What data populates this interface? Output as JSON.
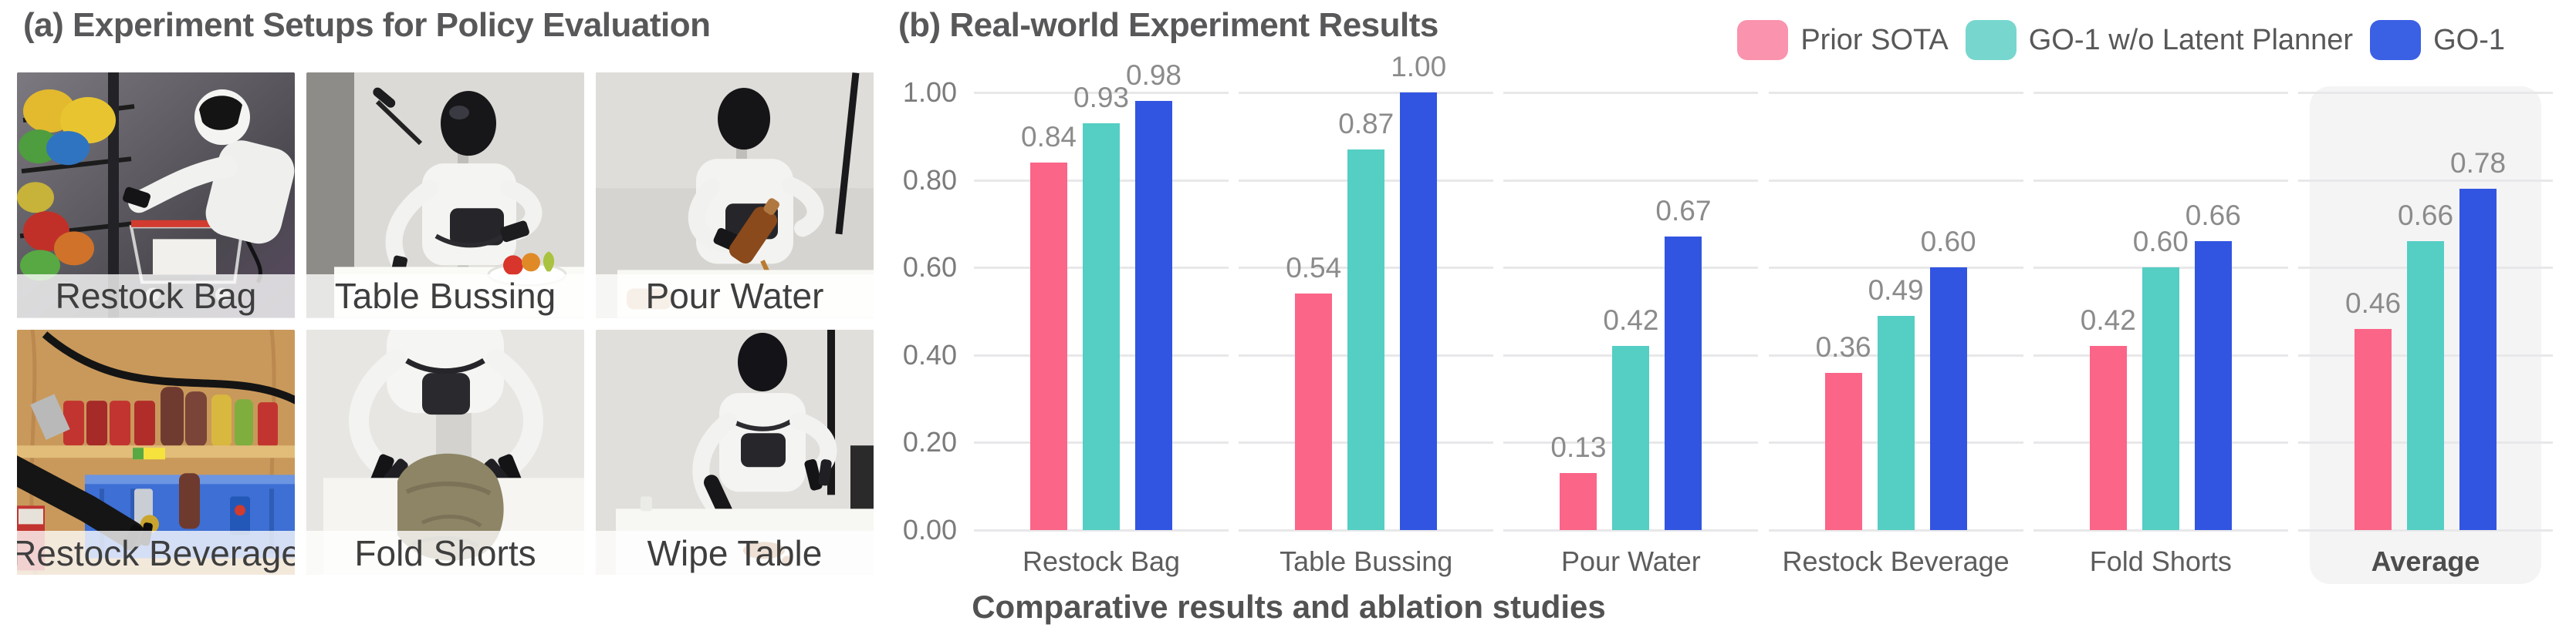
{
  "panel_a": {
    "title": "(a) Experiment Setups for Policy Evaluation",
    "photos": [
      {
        "label": "Restock Bag"
      },
      {
        "label": "Table Bussing"
      },
      {
        "label": "Pour Water"
      },
      {
        "label": "Restock Beverage"
      },
      {
        "label": "Fold Shorts"
      },
      {
        "label": "Wipe Table"
      }
    ]
  },
  "panel_b": {
    "title": "(b) Real-world Experiment Results",
    "caption": "Comparative results and ablation studies"
  },
  "chart_data": {
    "type": "bar",
    "title": "(b) Real-world Experiment Results",
    "categories": [
      "Restock Bag",
      "Table Bussing",
      "Pour Water",
      "Restock Beverage",
      "Fold Shorts",
      "Average"
    ],
    "highlighted_category": "Average",
    "series": [
      {
        "name": "Prior SOTA",
        "color": "#fb6588",
        "legend_color": "#fa93ae",
        "values": [
          0.84,
          0.54,
          0.13,
          0.36,
          0.42,
          0.46
        ]
      },
      {
        "name": "GO-1 w/o Latent Planner",
        "color": "#55cec4",
        "legend_color": "#77d7ce",
        "values": [
          0.93,
          0.87,
          0.42,
          0.49,
          0.6,
          0.66
        ]
      },
      {
        "name": "GO-1",
        "color": "#3155e1",
        "legend_color": "#3a60e4",
        "values": [
          0.98,
          1.0,
          0.67,
          0.6,
          0.66,
          0.78
        ]
      }
    ],
    "ylim": [
      0,
      1
    ],
    "yticks": [
      "0.00",
      "0.20",
      "0.40",
      "0.60",
      "0.80",
      "1.00"
    ],
    "grid": true,
    "legend_position": "top-right",
    "value_labels": [
      [
        "0.84",
        "0.54",
        "0.13",
        "0.36",
        "0.42",
        "0.46"
      ],
      [
        "0.93",
        "0.87",
        "0.42",
        "0.49",
        "0.60",
        "0.66"
      ],
      [
        "0.98",
        "1.00",
        "0.67",
        "0.60",
        "0.66",
        "0.78"
      ]
    ],
    "grid_color": "#e8e8ea",
    "highlight_color": "#f4f4f5"
  }
}
